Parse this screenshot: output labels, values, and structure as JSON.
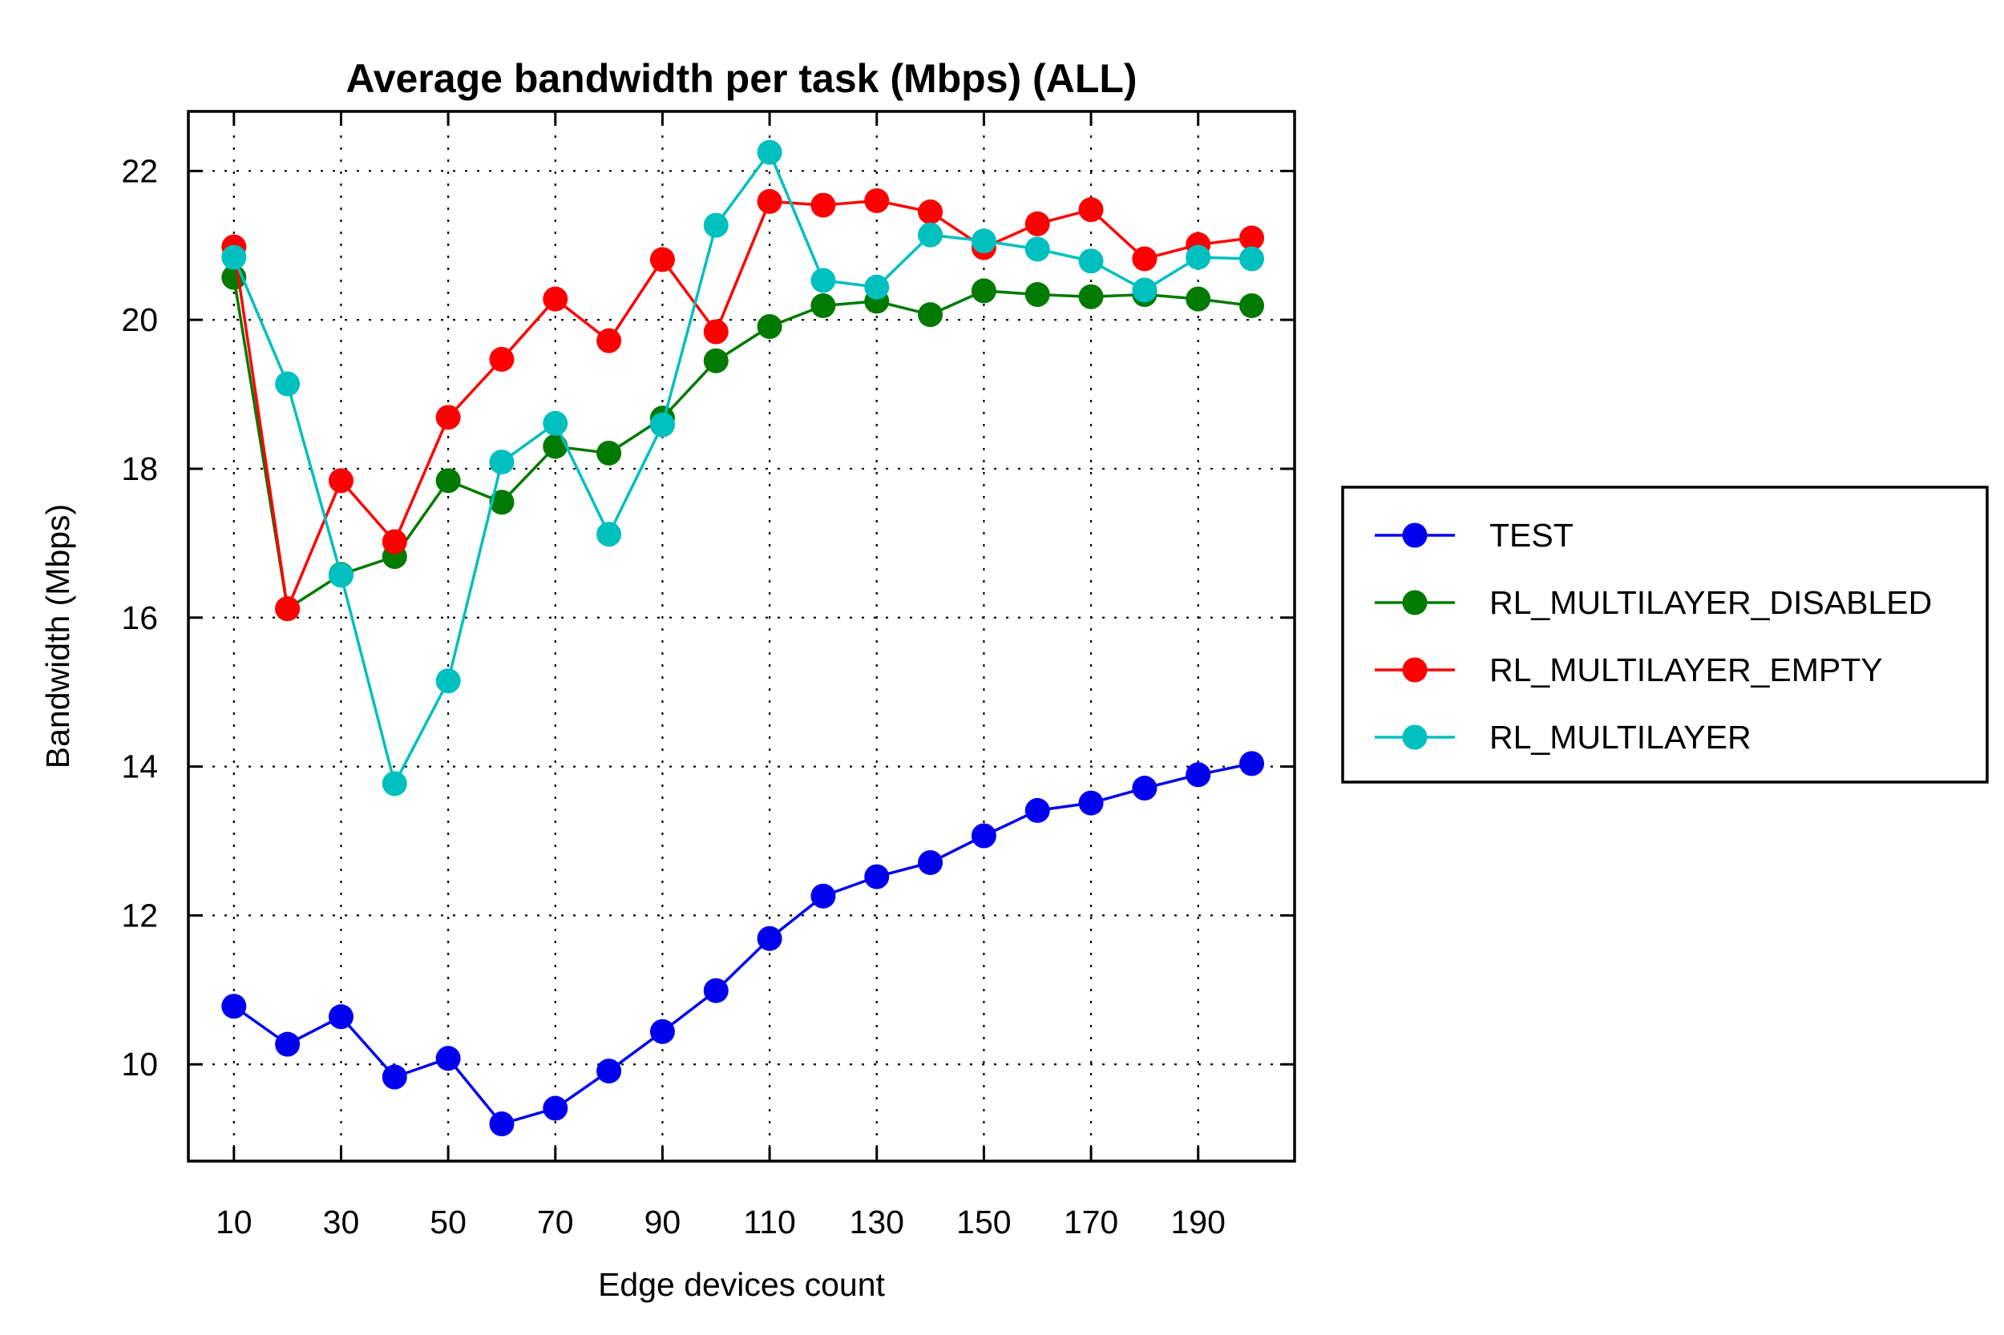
{
  "chart_data": {
    "type": "line",
    "title": "Average bandwidth per task (Mbps) (ALL)",
    "xlabel": "Edge devices count",
    "ylabel": "Bandwidth (Mbps)",
    "xlim": [
      1.5,
      208
    ],
    "ylim": [
      8.7,
      22.8
    ],
    "grid": true,
    "legend_position": "right",
    "x": [
      10,
      20,
      30,
      40,
      50,
      60,
      70,
      80,
      90,
      100,
      110,
      120,
      130,
      140,
      150,
      160,
      170,
      180,
      190,
      200
    ],
    "x_ticks": [
      10,
      30,
      50,
      70,
      90,
      110,
      130,
      150,
      170,
      190
    ],
    "x_tick_labels": [
      "10",
      "30",
      "50",
      "70",
      "90",
      "110",
      "130",
      "150",
      "170",
      "190"
    ],
    "y_ticks": [
      10,
      12,
      14,
      16,
      18,
      20,
      22
    ],
    "y_tick_labels": [
      "10",
      "12",
      "14",
      "16",
      "18",
      "20",
      "22"
    ],
    "series": [
      {
        "name": "TEST",
        "color": "#0000ee",
        "values": [
          10.78,
          10.27,
          10.64,
          9.83,
          10.08,
          9.2,
          9.41,
          9.91,
          10.44,
          10.99,
          11.69,
          12.26,
          12.52,
          12.71,
          13.07,
          13.41,
          13.51,
          13.71,
          13.89,
          14.04
        ]
      },
      {
        "name": "RL_MULTILAYER_DISABLED",
        "color": "#007a00",
        "values": [
          20.57,
          16.12,
          16.58,
          16.82,
          17.84,
          17.55,
          18.3,
          18.21,
          18.68,
          19.45,
          19.91,
          20.19,
          20.25,
          20.07,
          20.39,
          20.34,
          20.31,
          20.34,
          20.28,
          20.19
        ]
      },
      {
        "name": "RL_MULTILAYER_EMPTY",
        "color": "#ff0000",
        "values": [
          20.98,
          16.12,
          17.84,
          17.02,
          18.69,
          19.47,
          20.28,
          19.72,
          20.81,
          19.84,
          21.59,
          21.54,
          21.6,
          21.45,
          20.97,
          21.29,
          21.48,
          20.82,
          21.01,
          21.1
        ]
      },
      {
        "name": "RL_MULTILAYER",
        "color": "#00bfbf",
        "values": [
          20.84,
          19.14,
          16.57,
          13.77,
          15.15,
          18.09,
          18.61,
          17.12,
          18.59,
          21.27,
          22.25,
          20.53,
          20.44,
          21.14,
          21.06,
          20.95,
          20.79,
          20.4,
          20.84,
          20.82
        ]
      }
    ]
  }
}
